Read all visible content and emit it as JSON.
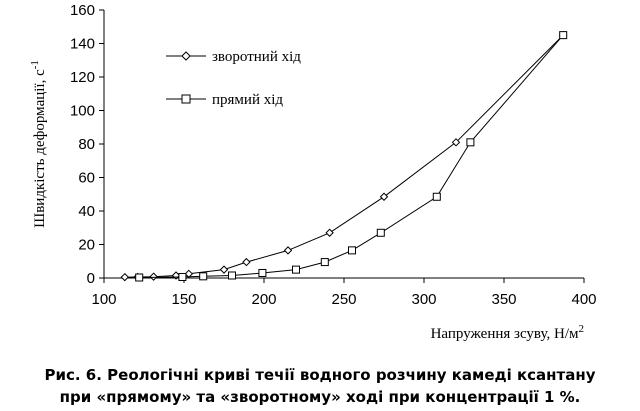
{
  "chart_data": {
    "type": "line",
    "xlabel": "Напруження зсуву, Н/м",
    "xlabel_sup": "2",
    "ylabel": "Швидкість деформації, с",
    "ylabel_sup": "-1",
    "xlim": [
      100,
      400
    ],
    "ylim": [
      0,
      160
    ],
    "xticks": [
      100,
      150,
      200,
      250,
      300,
      350,
      400
    ],
    "yticks": [
      0,
      20,
      40,
      60,
      80,
      100,
      120,
      140,
      160
    ],
    "grid": false,
    "legend_position": "top-left",
    "series": [
      {
        "name": "зворотний хід",
        "marker": "diamond",
        "points": [
          [
            113,
            0.5
          ],
          [
            121,
            0.6
          ],
          [
            131,
            0.8
          ],
          [
            145,
            1.5
          ],
          [
            153,
            2.5
          ],
          [
            175,
            5
          ],
          [
            189,
            9.5
          ],
          [
            215,
            16.5
          ],
          [
            241,
            27
          ],
          [
            275,
            48.5
          ],
          [
            320,
            81
          ],
          [
            387,
            145
          ]
        ]
      },
      {
        "name": "прямий хід",
        "marker": "square",
        "points": [
          [
            122,
            0.3
          ],
          [
            149,
            0.6
          ],
          [
            162,
            1
          ],
          [
            180,
            1.5
          ],
          [
            199,
            3
          ],
          [
            220,
            5
          ],
          [
            238,
            9.5
          ],
          [
            255,
            16.5
          ],
          [
            273,
            27
          ],
          [
            308,
            48.5
          ],
          [
            329,
            81
          ],
          [
            387,
            145
          ]
        ]
      }
    ]
  },
  "caption": {
    "line1": "Рис. 6. Реологічні криві течії водного розчину камеді ксантану",
    "line2": "при «прямому» та «зворотному» ході при концентрації 1 %."
  }
}
